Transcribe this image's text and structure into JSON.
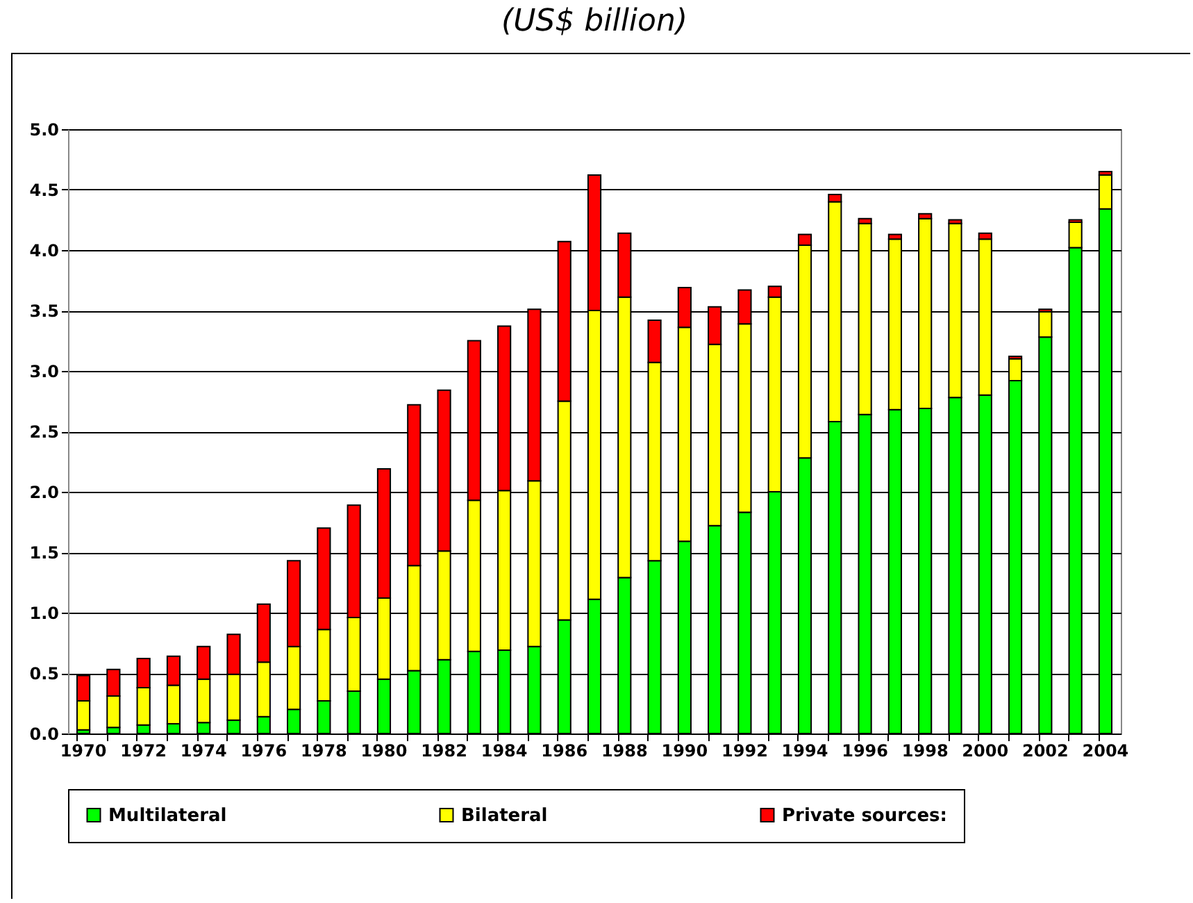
{
  "chart_data": {
    "type": "bar",
    "title": "(US$ billion)",
    "stacked": true,
    "grid": "y",
    "legend": "bottom",
    "categories": [
      "1970",
      null,
      "1972",
      null,
      "1974",
      null,
      "1976",
      null,
      "1978",
      null,
      "1980",
      null,
      "1982",
      null,
      "1984",
      null,
      "1986",
      null,
      "1988",
      null,
      "1990",
      null,
      "1992",
      null,
      "1994",
      null,
      "1996",
      null,
      "1998",
      null,
      "2000",
      null,
      "2002",
      null,
      "2004"
    ],
    "ylim": [
      0,
      5
    ],
    "yticks": [
      {
        "value": 0,
        "label": "0.0"
      },
      {
        "value": 0.5,
        "label": "0.5"
      },
      {
        "value": 1,
        "label": "1.0"
      },
      {
        "value": 1.5,
        "label": "1.5"
      },
      {
        "value": 2,
        "label": "2.0"
      },
      {
        "value": 2.5,
        "label": "2.5"
      },
      {
        "value": 3,
        "label": "3.0"
      },
      {
        "value": 3.5,
        "label": "3.5"
      },
      {
        "value": 4,
        "label": "4.0"
      },
      {
        "value": 4.5,
        "label": "4.5"
      },
      {
        "value": 5,
        "label": "5.0"
      }
    ],
    "series": [
      {
        "name": "Multilateral",
        "color": "#00ff00",
        "values": [
          0.03,
          0.05,
          0.07,
          0.08,
          0.09,
          0.11,
          0.14,
          0.2,
          0.27,
          0.35,
          0.45,
          0.52,
          0.61,
          0.68,
          0.69,
          0.72,
          0.94,
          1.11,
          1.29,
          1.43,
          1.59,
          1.72,
          1.83,
          2.0,
          2.28,
          2.58,
          2.64,
          2.68,
          2.69,
          2.78,
          2.8,
          2.92,
          3.28,
          4.02,
          4.34
        ]
      },
      {
        "name": "Bilateral",
        "color": "#ffff00",
        "values": [
          0.24,
          0.26,
          0.31,
          0.32,
          0.36,
          0.38,
          0.45,
          0.52,
          0.59,
          0.61,
          0.67,
          0.87,
          0.9,
          1.25,
          1.32,
          1.37,
          1.81,
          2.39,
          2.32,
          1.64,
          1.77,
          1.5,
          1.56,
          1.61,
          1.76,
          1.82,
          1.58,
          1.41,
          1.57,
          1.44,
          1.29,
          0.18,
          0.21,
          0.21,
          0.28
        ]
      },
      {
        "name": "Private sources:",
        "color": "#ff0000",
        "values": [
          0.21,
          0.22,
          0.24,
          0.24,
          0.27,
          0.33,
          0.48,
          0.71,
          0.84,
          0.93,
          1.07,
          1.33,
          1.33,
          1.32,
          1.36,
          1.42,
          1.32,
          1.12,
          0.53,
          0.35,
          0.33,
          0.31,
          0.28,
          0.09,
          0.09,
          0.06,
          0.04,
          0.04,
          0.04,
          0.03,
          0.05,
          0.02,
          0.02,
          0.02,
          0.03
        ]
      }
    ]
  }
}
